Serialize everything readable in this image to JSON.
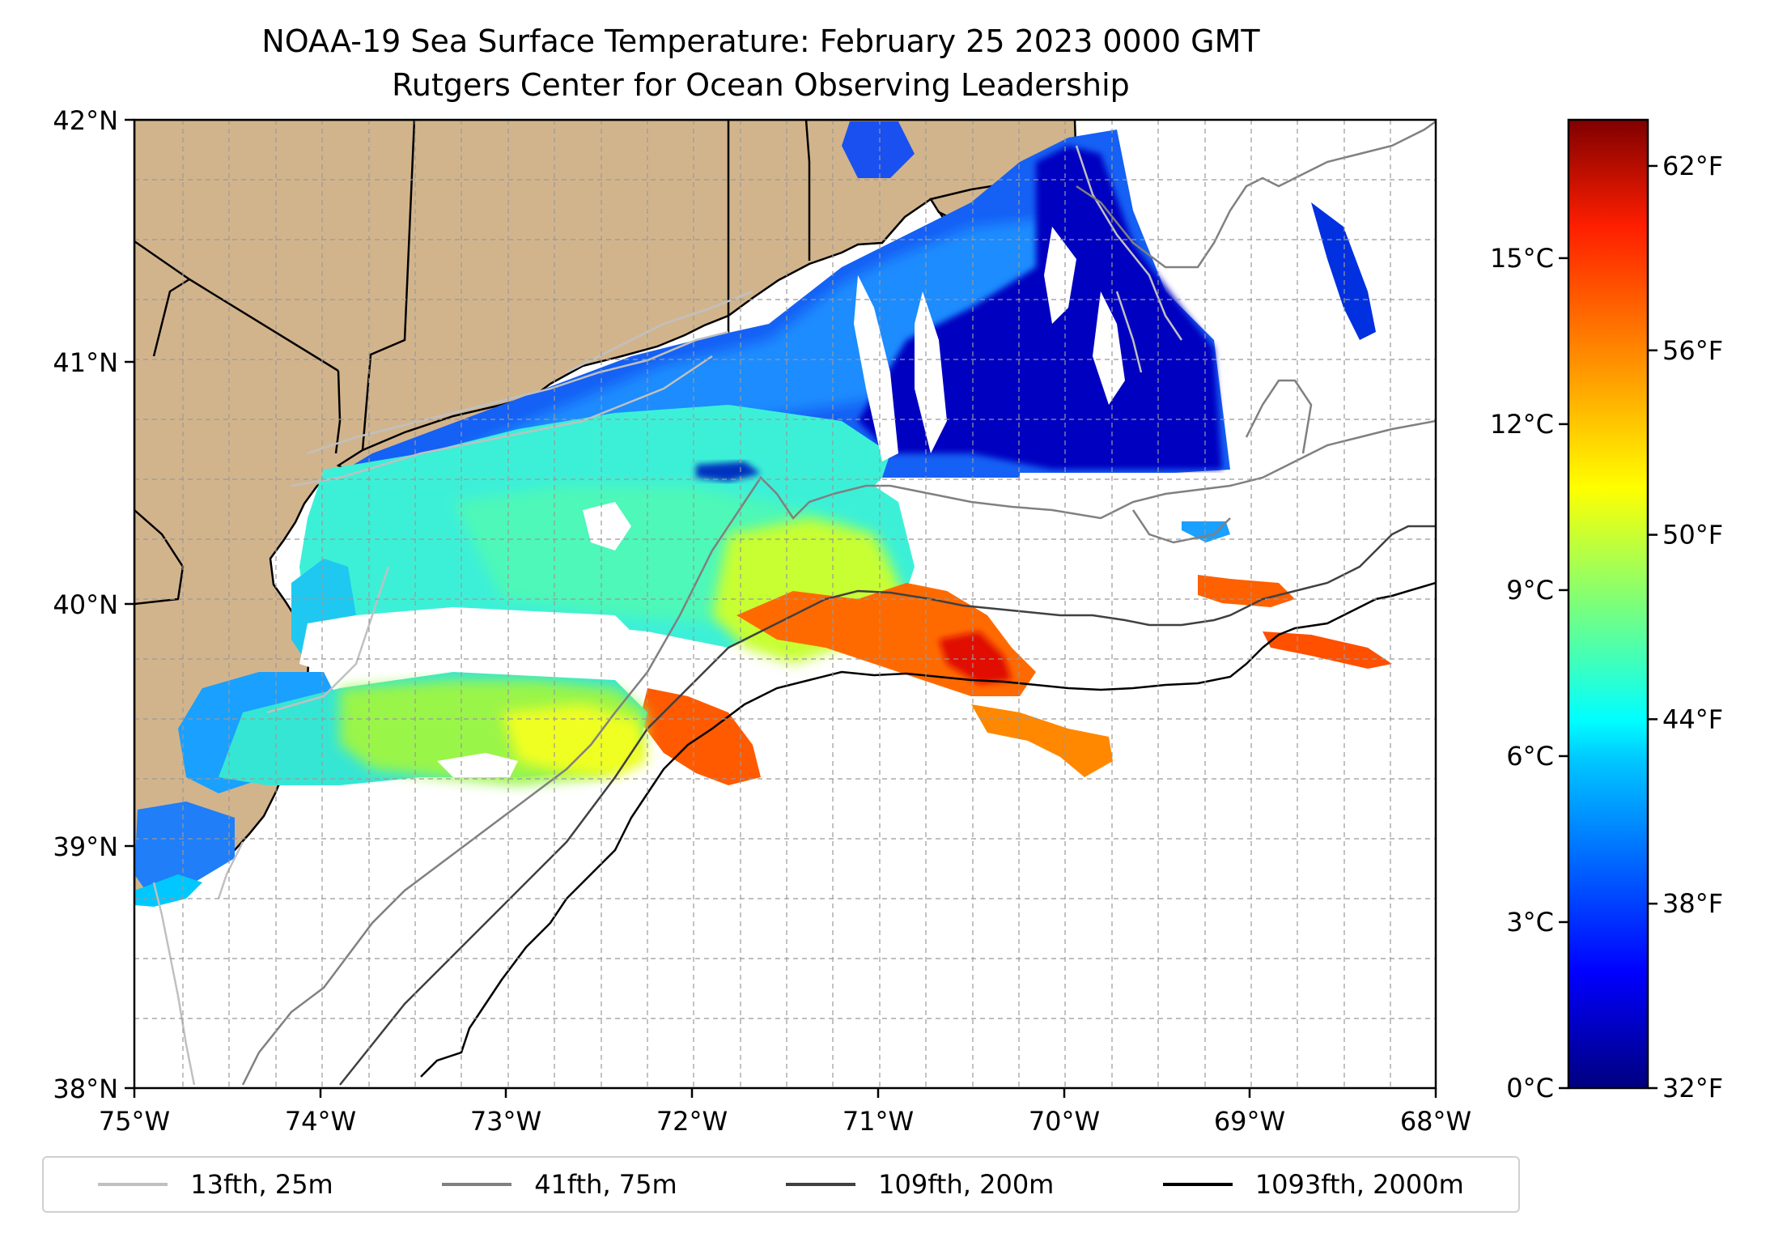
{
  "title": "NOAA-19 Sea Surface Temperature: February 25 2023 0000 GMT",
  "subtitle": "Rutgers Center for Ocean Observing Leadership",
  "map": {
    "lon_range": [
      -75,
      -68
    ],
    "lat_range": [
      38,
      42
    ],
    "lon_ticks": [
      "75°W",
      "74°W",
      "73°W",
      "72°W",
      "71°W",
      "70°W",
      "69°W",
      "68°W"
    ],
    "lat_ticks": [
      "38°N",
      "39°N",
      "40°N",
      "41°N",
      "42°N"
    ],
    "land_color": "#d2b48c",
    "gridlines": "dashed",
    "colormap": "jet"
  },
  "colorbar": {
    "celsius_ticks": [
      "0°C",
      "3°C",
      "6°C",
      "9°C",
      "12°C",
      "15°C"
    ],
    "celsius_values": [
      0,
      3,
      6,
      9,
      12,
      15
    ],
    "fahrenheit_ticks": [
      "32°F",
      "38°F",
      "44°F",
      "50°F",
      "56°F",
      "62°F"
    ],
    "fahrenheit_values": [
      32,
      38,
      44,
      50,
      56,
      62
    ],
    "range_celsius": [
      0,
      17.5
    ]
  },
  "legend": {
    "placement": "bottom",
    "entries": [
      {
        "label": "13fth, 25m",
        "color": "#c0c0c0"
      },
      {
        "label": "41fth, 75m",
        "color": "#808080"
      },
      {
        "label": "109fth, 200m",
        "color": "#404040"
      },
      {
        "label": "1093fth, 2000m",
        "color": "#000000"
      }
    ]
  }
}
